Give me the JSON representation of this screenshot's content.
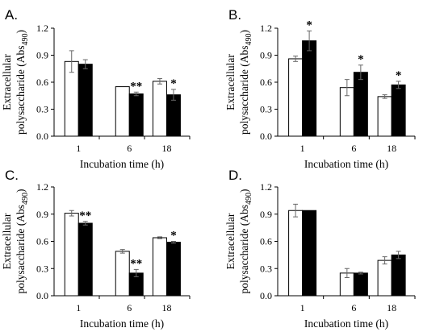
{
  "colors": {
    "control": "#ffffff",
    "treated": "#000000",
    "stroke": "#000000",
    "error_bar": "#666666"
  },
  "chart_data": [
    {
      "type": "bar",
      "panel_label": "A.",
      "categories": [
        "1",
        "6",
        "18"
      ],
      "series": [
        {
          "fill": "white",
          "values": [
            0.83,
            0.55,
            0.61
          ],
          "errors": [
            0.12,
            0.0,
            0.03
          ]
        },
        {
          "fill": "black",
          "values": [
            0.8,
            0.47,
            0.46
          ],
          "errors": [
            0.05,
            0.02,
            0.06
          ]
        }
      ],
      "significance": [
        [
          "",
          "",
          ""
        ],
        [
          "",
          "**",
          "*"
        ]
      ],
      "xlabel": "Incubation time (h)",
      "ylabel_lines": [
        "Extracellular",
        "polysaccharide (Abs",
        "490",
        ")"
      ],
      "yticks": [
        "0.0",
        "0.3",
        "0.6",
        "0.9",
        "1.2"
      ],
      "ylim": [
        0,
        1.2
      ],
      "grid": false
    },
    {
      "type": "bar",
      "panel_label": "B.",
      "categories": [
        "1",
        "6",
        "18"
      ],
      "series": [
        {
          "fill": "white",
          "values": [
            0.86,
            0.54,
            0.44
          ],
          "errors": [
            0.03,
            0.09,
            0.02
          ]
        },
        {
          "fill": "black",
          "values": [
            1.06,
            0.71,
            0.57
          ],
          "errors": [
            0.11,
            0.08,
            0.04
          ]
        }
      ],
      "significance": [
        [
          "",
          "",
          ""
        ],
        [
          "*",
          "*",
          "*"
        ]
      ],
      "xlabel": "Incubation time (h)",
      "ylabel_lines": [
        "Extracellular",
        "polysaccharide (Abs",
        "490",
        ")"
      ],
      "yticks": [
        "0.0",
        "0.3",
        "0.6",
        "0.9",
        "1.2"
      ],
      "ylim": [
        0,
        1.2
      ],
      "grid": false
    },
    {
      "type": "bar",
      "panel_label": "C.",
      "categories": [
        "1",
        "6",
        "18"
      ],
      "series": [
        {
          "fill": "white",
          "values": [
            0.91,
            0.49,
            0.64
          ],
          "errors": [
            0.03,
            0.02,
            0.01
          ]
        },
        {
          "fill": "black",
          "values": [
            0.8,
            0.25,
            0.59
          ],
          "errors": [
            0.02,
            0.04,
            0.01
          ]
        }
      ],
      "significance": [
        [
          "",
          "",
          ""
        ],
        [
          "**",
          "**",
          "*"
        ]
      ],
      "xlabel": "Incubation time (h)",
      "ylabel_lines": [
        "Extracellular",
        "polysaccharide (Abs",
        "490",
        ")"
      ],
      "yticks": [
        "0.0",
        "0.3",
        "0.6",
        "0.9",
        "1.2"
      ],
      "ylim": [
        0,
        1.2
      ],
      "grid": false
    },
    {
      "type": "bar",
      "panel_label": "D.",
      "categories": [
        "1",
        "6",
        "18"
      ],
      "series": [
        {
          "fill": "white",
          "values": [
            0.94,
            0.25,
            0.39
          ],
          "errors": [
            0.07,
            0.05,
            0.04
          ]
        },
        {
          "fill": "black",
          "values": [
            0.94,
            0.25,
            0.45
          ],
          "errors": [
            0.0,
            0.01,
            0.04
          ]
        }
      ],
      "significance": [
        [
          "",
          "",
          ""
        ],
        [
          "",
          "",
          ""
        ]
      ],
      "xlabel": "Incubation time (h)",
      "ylabel_lines": [
        "Extracellular",
        "polysaccharide (Abs",
        "490",
        ")"
      ],
      "yticks": [
        "0.0",
        "0.3",
        "0.6",
        "0.9",
        "1.2"
      ],
      "ylim": [
        0,
        1.2
      ],
      "grid": false
    }
  ]
}
